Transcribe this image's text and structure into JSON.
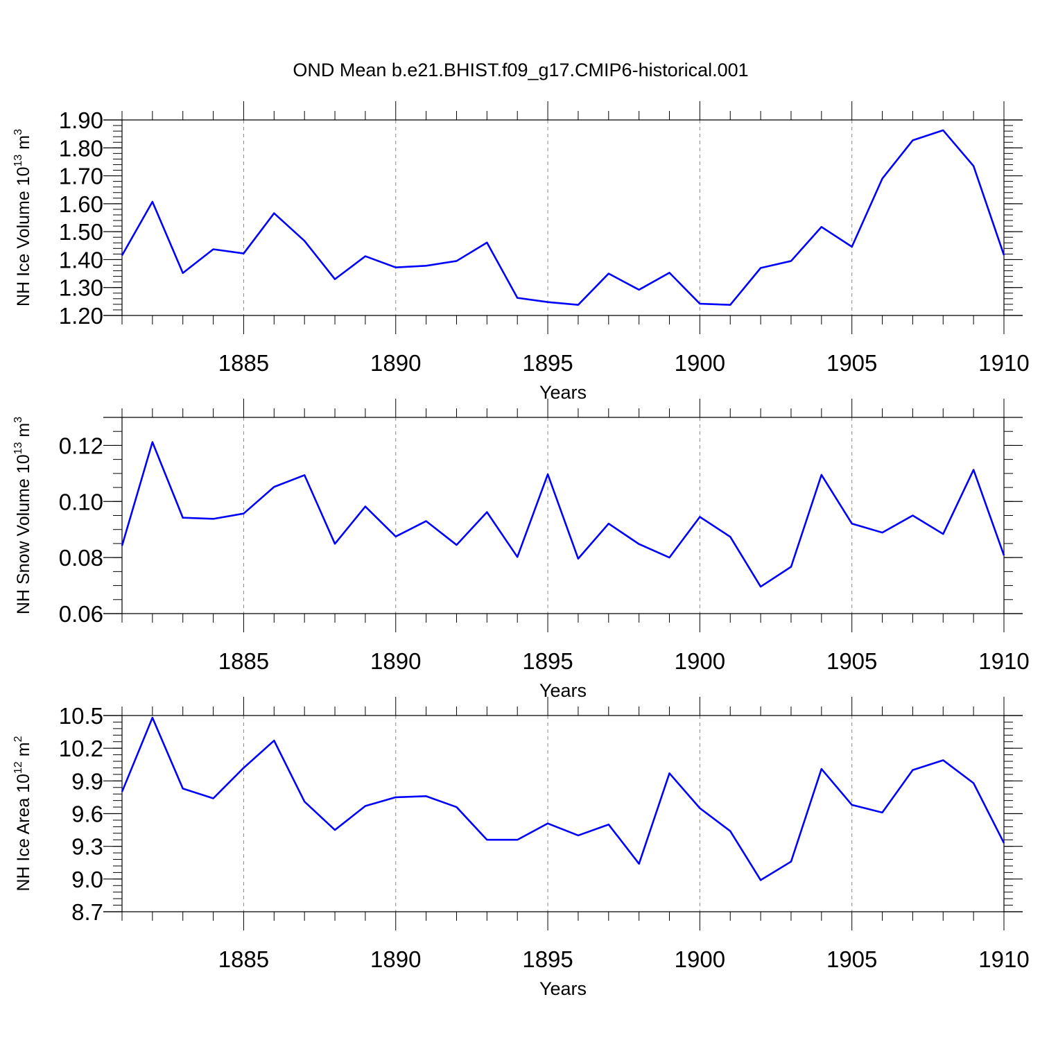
{
  "figure": {
    "title": "OND Mean b.e21.BHIST.f09_g17.CMIP6-historical.001"
  },
  "chart_data": [
    {
      "type": "line",
      "title": "OND Mean b.e21.BHIST.f09_g17.CMIP6-historical.001",
      "xlabel": "Years",
      "ylabel": "NH Ice Volume 10",
      "ylabel_exp": "13",
      "ylabel_unit": " m",
      "ylabel_unit_exp": "3",
      "xlim": [
        1881,
        1910
      ],
      "ylim": [
        1.2,
        1.9
      ],
      "yticks": [
        1.2,
        1.3,
        1.4,
        1.5,
        1.6,
        1.7,
        1.8,
        1.9
      ],
      "ytick_labels": [
        "1.20",
        "1.30",
        "1.40",
        "1.50",
        "1.60",
        "1.70",
        "1.80",
        "1.90"
      ],
      "yminor_step": 0.02,
      "xticks": [
        1885,
        1890,
        1895,
        1900,
        1905,
        1910
      ],
      "xtick_labels": [
        "1885",
        "1890",
        "1895",
        "1900",
        "1905",
        "1910"
      ],
      "grid": "vertical dashed at major x ticks",
      "color": "#0000ff",
      "series": [
        {
          "name": "NH Ice Volume",
          "x": [
            1881,
            1882,
            1883,
            1884,
            1885,
            1886,
            1887,
            1888,
            1889,
            1890,
            1891,
            1892,
            1893,
            1894,
            1895,
            1896,
            1897,
            1898,
            1899,
            1900,
            1901,
            1902,
            1903,
            1904,
            1905,
            1906,
            1907,
            1908,
            1909,
            1910
          ],
          "values": [
            1.415,
            1.607,
            1.352,
            1.437,
            1.422,
            1.566,
            1.467,
            1.33,
            1.412,
            1.372,
            1.378,
            1.395,
            1.461,
            1.263,
            1.248,
            1.238,
            1.35,
            1.292,
            1.353,
            1.242,
            1.238,
            1.37,
            1.395,
            1.517,
            1.446,
            1.69,
            1.827,
            1.863,
            1.735,
            1.416
          ]
        }
      ]
    },
    {
      "type": "line",
      "xlabel": "Years",
      "ylabel": "NH Snow Volume 10",
      "ylabel_exp": "13",
      "ylabel_unit": " m",
      "ylabel_unit_exp": "3",
      "xlim": [
        1881,
        1910
      ],
      "ylim": [
        0.06,
        0.13
      ],
      "yticks": [
        0.06,
        0.08,
        0.1,
        0.12
      ],
      "ytick_labels": [
        "0.06",
        "0.08",
        "0.10",
        "0.12"
      ],
      "yminor_step": 0.005,
      "xticks": [
        1885,
        1890,
        1895,
        1900,
        1905,
        1910
      ],
      "xtick_labels": [
        "1885",
        "1890",
        "1895",
        "1900",
        "1905",
        "1910"
      ],
      "grid": "vertical dashed at major x ticks",
      "color": "#0000ff",
      "series": [
        {
          "name": "NH Snow Volume",
          "x": [
            1881,
            1882,
            1883,
            1884,
            1885,
            1886,
            1887,
            1888,
            1889,
            1890,
            1891,
            1892,
            1893,
            1894,
            1895,
            1896,
            1897,
            1898,
            1899,
            1900,
            1901,
            1902,
            1903,
            1904,
            1905,
            1906,
            1907,
            1908,
            1909,
            1910
          ],
          "values": [
            0.0842,
            0.1212,
            0.0942,
            0.0938,
            0.0957,
            0.1052,
            0.1094,
            0.0849,
            0.0982,
            0.0875,
            0.093,
            0.0845,
            0.0962,
            0.0802,
            0.1097,
            0.0796,
            0.0921,
            0.0848,
            0.08,
            0.0945,
            0.0874,
            0.0696,
            0.0767,
            0.1095,
            0.0921,
            0.0889,
            0.095,
            0.0884,
            0.1113,
            0.0808
          ]
        }
      ]
    },
    {
      "type": "line",
      "xlabel": "Years",
      "ylabel": "NH Ice Area 10",
      "ylabel_exp": "12",
      "ylabel_unit": " m",
      "ylabel_unit_exp": "2",
      "xlim": [
        1881,
        1910
      ],
      "ylim": [
        8.7,
        10.5
      ],
      "yticks": [
        8.7,
        9.0,
        9.3,
        9.6,
        9.9,
        10.2,
        10.5
      ],
      "ytick_labels": [
        "8.7",
        "9.0",
        "9.3",
        "9.6",
        "9.9",
        "10.2",
        "10.5"
      ],
      "yminor_step": 0.06,
      "xticks": [
        1885,
        1890,
        1895,
        1900,
        1905,
        1910
      ],
      "xtick_labels": [
        "1885",
        "1890",
        "1895",
        "1900",
        "1905",
        "1910"
      ],
      "grid": "vertical dashed at major x ticks",
      "color": "#0000ff",
      "series": [
        {
          "name": "NH Ice Area",
          "x": [
            1881,
            1882,
            1883,
            1884,
            1885,
            1886,
            1887,
            1888,
            1889,
            1890,
            1891,
            1892,
            1893,
            1894,
            1895,
            1896,
            1897,
            1898,
            1899,
            1900,
            1901,
            1902,
            1903,
            1904,
            1905,
            1906,
            1907,
            1908,
            1909,
            1910
          ],
          "values": [
            9.8,
            10.48,
            9.83,
            9.74,
            10.02,
            10.27,
            9.71,
            9.45,
            9.67,
            9.75,
            9.76,
            9.66,
            9.36,
            9.36,
            9.51,
            9.4,
            9.5,
            9.14,
            9.97,
            9.65,
            9.44,
            8.99,
            9.16,
            10.01,
            9.68,
            9.61,
            10.0,
            10.09,
            9.88,
            9.33
          ]
        }
      ]
    }
  ]
}
